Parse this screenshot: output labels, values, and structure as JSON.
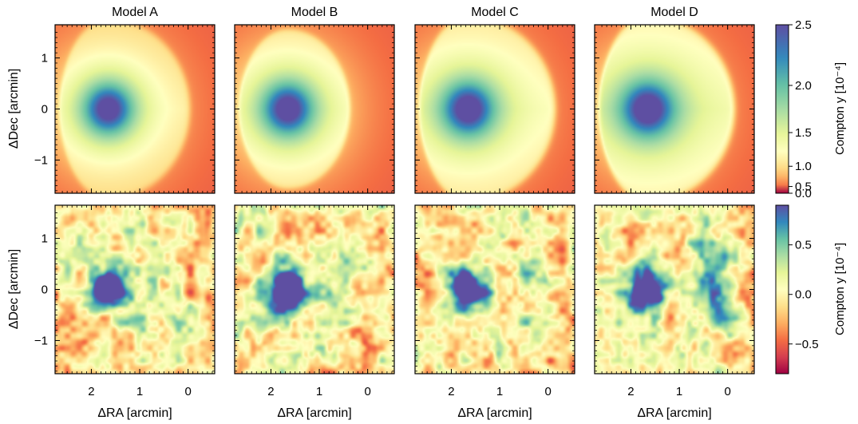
{
  "chart_data": {
    "type": "heatmap",
    "models": [
      "Model A",
      "Model B",
      "Model C",
      "Model D"
    ],
    "axes": {
      "x_label": "ΔRA [arcmin]",
      "y_label": "ΔDec [arcmin]",
      "x_ticks": [
        2,
        1,
        0
      ],
      "x_tick_labels": [
        "2",
        "1",
        "0"
      ],
      "y_ticks": [
        1,
        0,
        -1
      ],
      "y_tick_labels": [
        "1",
        "0",
        "−1"
      ],
      "xlim": [
        2.75,
        -0.55
      ],
      "ylim": [
        -1.65,
        1.65
      ]
    },
    "rows": [
      {
        "kind": "model",
        "colorbar": {
          "label": "Compton y [10⁻⁴]",
          "range": [
            0.0,
            2.5
          ],
          "ticks": [
            0.0,
            0.5,
            1.0,
            1.5,
            2.0,
            2.5
          ],
          "tick_labels": [
            "0.0",
            "0.5",
            "1.0",
            "1.5",
            "2.0",
            "2.5"
          ],
          "scale": "sqrt"
        },
        "panels": [
          {
            "model": "Model A",
            "cluster_center": [
              1.65,
              0.0
            ],
            "shock_front_ra": -0.02,
            "shock_rx": 1.67,
            "shock_ry": 1.75,
            "shock_strength": 0.35
          },
          {
            "model": "Model B",
            "cluster_center": [
              1.65,
              0.0
            ],
            "shock_front_ra": 0.37,
            "shock_rx": 1.28,
            "shock_ry": 1.55,
            "shock_strength": 0.42
          },
          {
            "model": "Model C",
            "cluster_center": [
              1.65,
              0.0
            ],
            "shock_front_ra": -0.13,
            "shock_rx": 1.78,
            "shock_ry": 1.8,
            "shock_strength": 0.5
          },
          {
            "model": "Model D",
            "cluster_center": [
              1.65,
              0.0
            ],
            "shock_front_ra": -0.12,
            "shock_rx": 1.77,
            "shock_ry": 1.8,
            "shock_strength": 0.6
          }
        ]
      },
      {
        "kind": "mock_observation",
        "colorbar": {
          "label": "Compton y [10⁻⁴]",
          "range": [
            -0.8,
            0.9
          ],
          "ticks": [
            -0.5,
            0.0,
            0.5
          ],
          "tick_labels": [
            "−0.5",
            "0.0",
            "0.5"
          ],
          "scale": "linear"
        },
        "panels": [
          {
            "model": "Model A",
            "cluster_center": [
              1.65,
              0.0
            ],
            "shock_front_ra": -0.02,
            "shock_strength": 0.15
          },
          {
            "model": "Model B",
            "cluster_center": [
              1.65,
              0.0
            ],
            "shock_front_ra": 0.37,
            "shock_strength": 0.18
          },
          {
            "model": "Model C",
            "cluster_center": [
              1.65,
              0.0
            ],
            "shock_front_ra": -0.13,
            "shock_strength": 0.45
          },
          {
            "model": "Model D",
            "cluster_center": [
              1.65,
              0.0
            ],
            "shock_front_ra": -0.12,
            "shock_strength": 0.7
          }
        ]
      }
    ]
  },
  "colormap": [
    "#9e0142",
    "#d53e4f",
    "#f46d43",
    "#fdae61",
    "#fee08b",
    "#ffffbf",
    "#e6f598",
    "#abdda4",
    "#66c2a5",
    "#3288bd",
    "#5e4fa2"
  ]
}
